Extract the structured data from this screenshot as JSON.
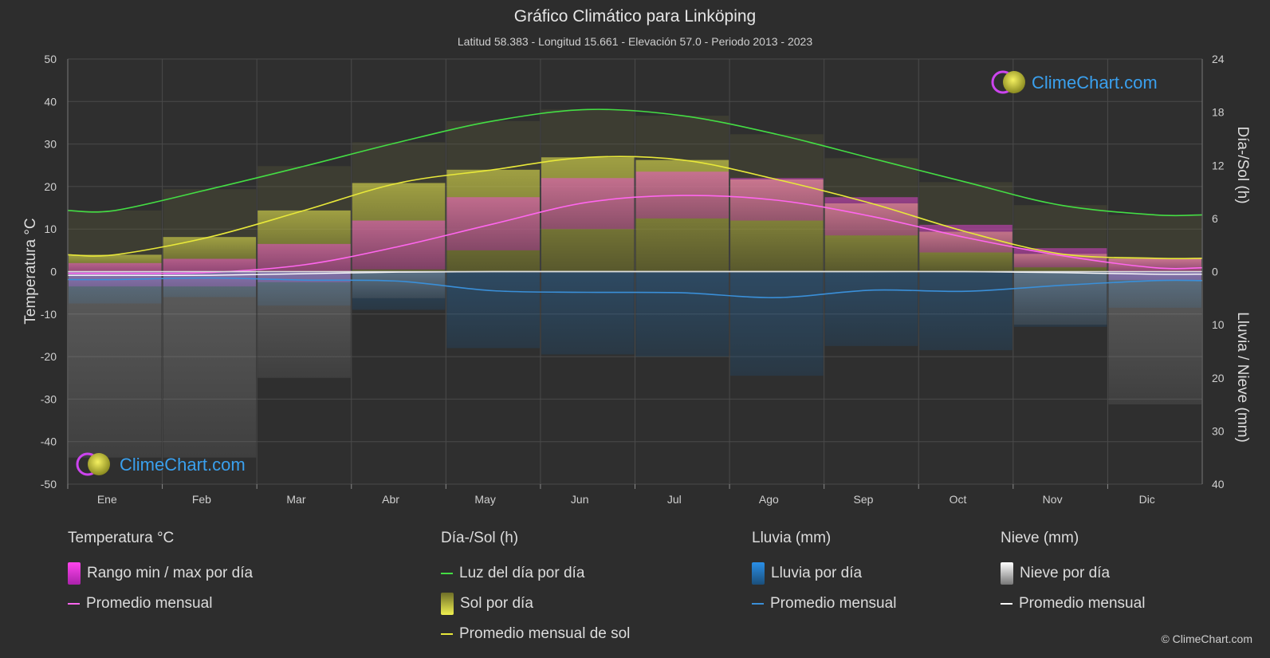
{
  "header": {
    "title": "Gráfico Climático para Linköping",
    "subtitle": "Latitud 58.383 - Longitud 15.661 - Elevación 57.0 - Periodo 2013 - 2023"
  },
  "chart_data": {
    "type": "line",
    "months": [
      "Ene",
      "Feb",
      "Mar",
      "Abr",
      "May",
      "Jun",
      "Jul",
      "Ago",
      "Sep",
      "Oct",
      "Nov",
      "Dic"
    ],
    "y_left": {
      "label": "Temperatura °C",
      "ylim": [
        -50,
        50
      ],
      "ticks": [
        "50",
        "40",
        "30",
        "20",
        "10",
        "0",
        "-10",
        "-20",
        "-30",
        "-40",
        "-50"
      ]
    },
    "y_right_top": {
      "label": "Día-/Sol (h)",
      "ylim": [
        0,
        24
      ],
      "ticks": [
        "24",
        "18",
        "12",
        "6",
        "0"
      ]
    },
    "y_right_bottom": {
      "label": "Lluvia / Nieve (mm)",
      "ylim": [
        0,
        40
      ],
      "ticks": [
        "10",
        "20",
        "30",
        "40"
      ]
    },
    "grid": true,
    "series": [
      {
        "name": "Luz del día por día",
        "unit": "h",
        "color": "#44dd44",
        "values": [
          6.9,
          9.3,
          11.9,
          14.6,
          17.0,
          18.3,
          17.6,
          15.5,
          12.8,
          10.1,
          7.5,
          6.4
        ]
      },
      {
        "name": "Promedio mensual de sol",
        "unit": "h",
        "color": "#e8e83a",
        "values": [
          1.9,
          3.9,
          6.9,
          10.0,
          11.5,
          12.9,
          12.6,
          10.4,
          7.7,
          4.5,
          2.0,
          1.5
        ]
      },
      {
        "name": "Promedio mensual",
        "group": "Temperatura °C",
        "unit": "°C",
        "color": "#ff66ee",
        "values": [
          -0.4,
          -0.2,
          1.6,
          5.9,
          11.2,
          16.3,
          17.9,
          16.8,
          13.0,
          8.0,
          3.8,
          0.9
        ]
      },
      {
        "name": "Promedio mensual",
        "group": "Lluvia (mm)",
        "unit": "mm",
        "color": "#3a8fd8",
        "values": [
          1.5,
          1.2,
          1.6,
          1.8,
          3.6,
          3.9,
          4.0,
          4.9,
          3.5,
          3.7,
          2.6,
          1.7
        ]
      },
      {
        "name": "Promedio mensual",
        "group": "Nieve (mm)",
        "unit": "mm",
        "color": "#ffffff",
        "values": [
          0.7,
          0.7,
          0.4,
          0.1,
          0.0,
          0.0,
          0.0,
          0.0,
          0.0,
          0.0,
          0.2,
          0.5
        ]
      }
    ],
    "temp_range_daily": {
      "name": "Rango min / max por día",
      "min": [
        -3.5,
        -3.5,
        -2.5,
        0.5,
        5.0,
        10.0,
        12.5,
        12.0,
        8.5,
        4.5,
        1.0,
        -2.0
      ],
      "max": [
        2.0,
        3.0,
        6.5,
        12.0,
        17.5,
        22.0,
        23.5,
        22.0,
        17.5,
        11.0,
        5.5,
        3.0
      ]
    }
  },
  "legend": {
    "temperature": {
      "heading": "Temperatura °C",
      "range": "Rango min / max por día",
      "avg": "Promedio mensual"
    },
    "sun": {
      "heading": "Día-/Sol (h)",
      "daylight": "Luz del día por día",
      "sunshine": "Sol por día",
      "avg": "Promedio mensual de sol"
    },
    "rain": {
      "heading": "Lluvia (mm)",
      "daily": "Lluvia por día",
      "avg": "Promedio mensual"
    },
    "snow": {
      "heading": "Nieve (mm)",
      "daily": "Nieve por día",
      "avg": "Promedio mensual"
    }
  },
  "brand": {
    "name": "ClimeChart.com",
    "copyright": "© ClimeChart.com"
  }
}
